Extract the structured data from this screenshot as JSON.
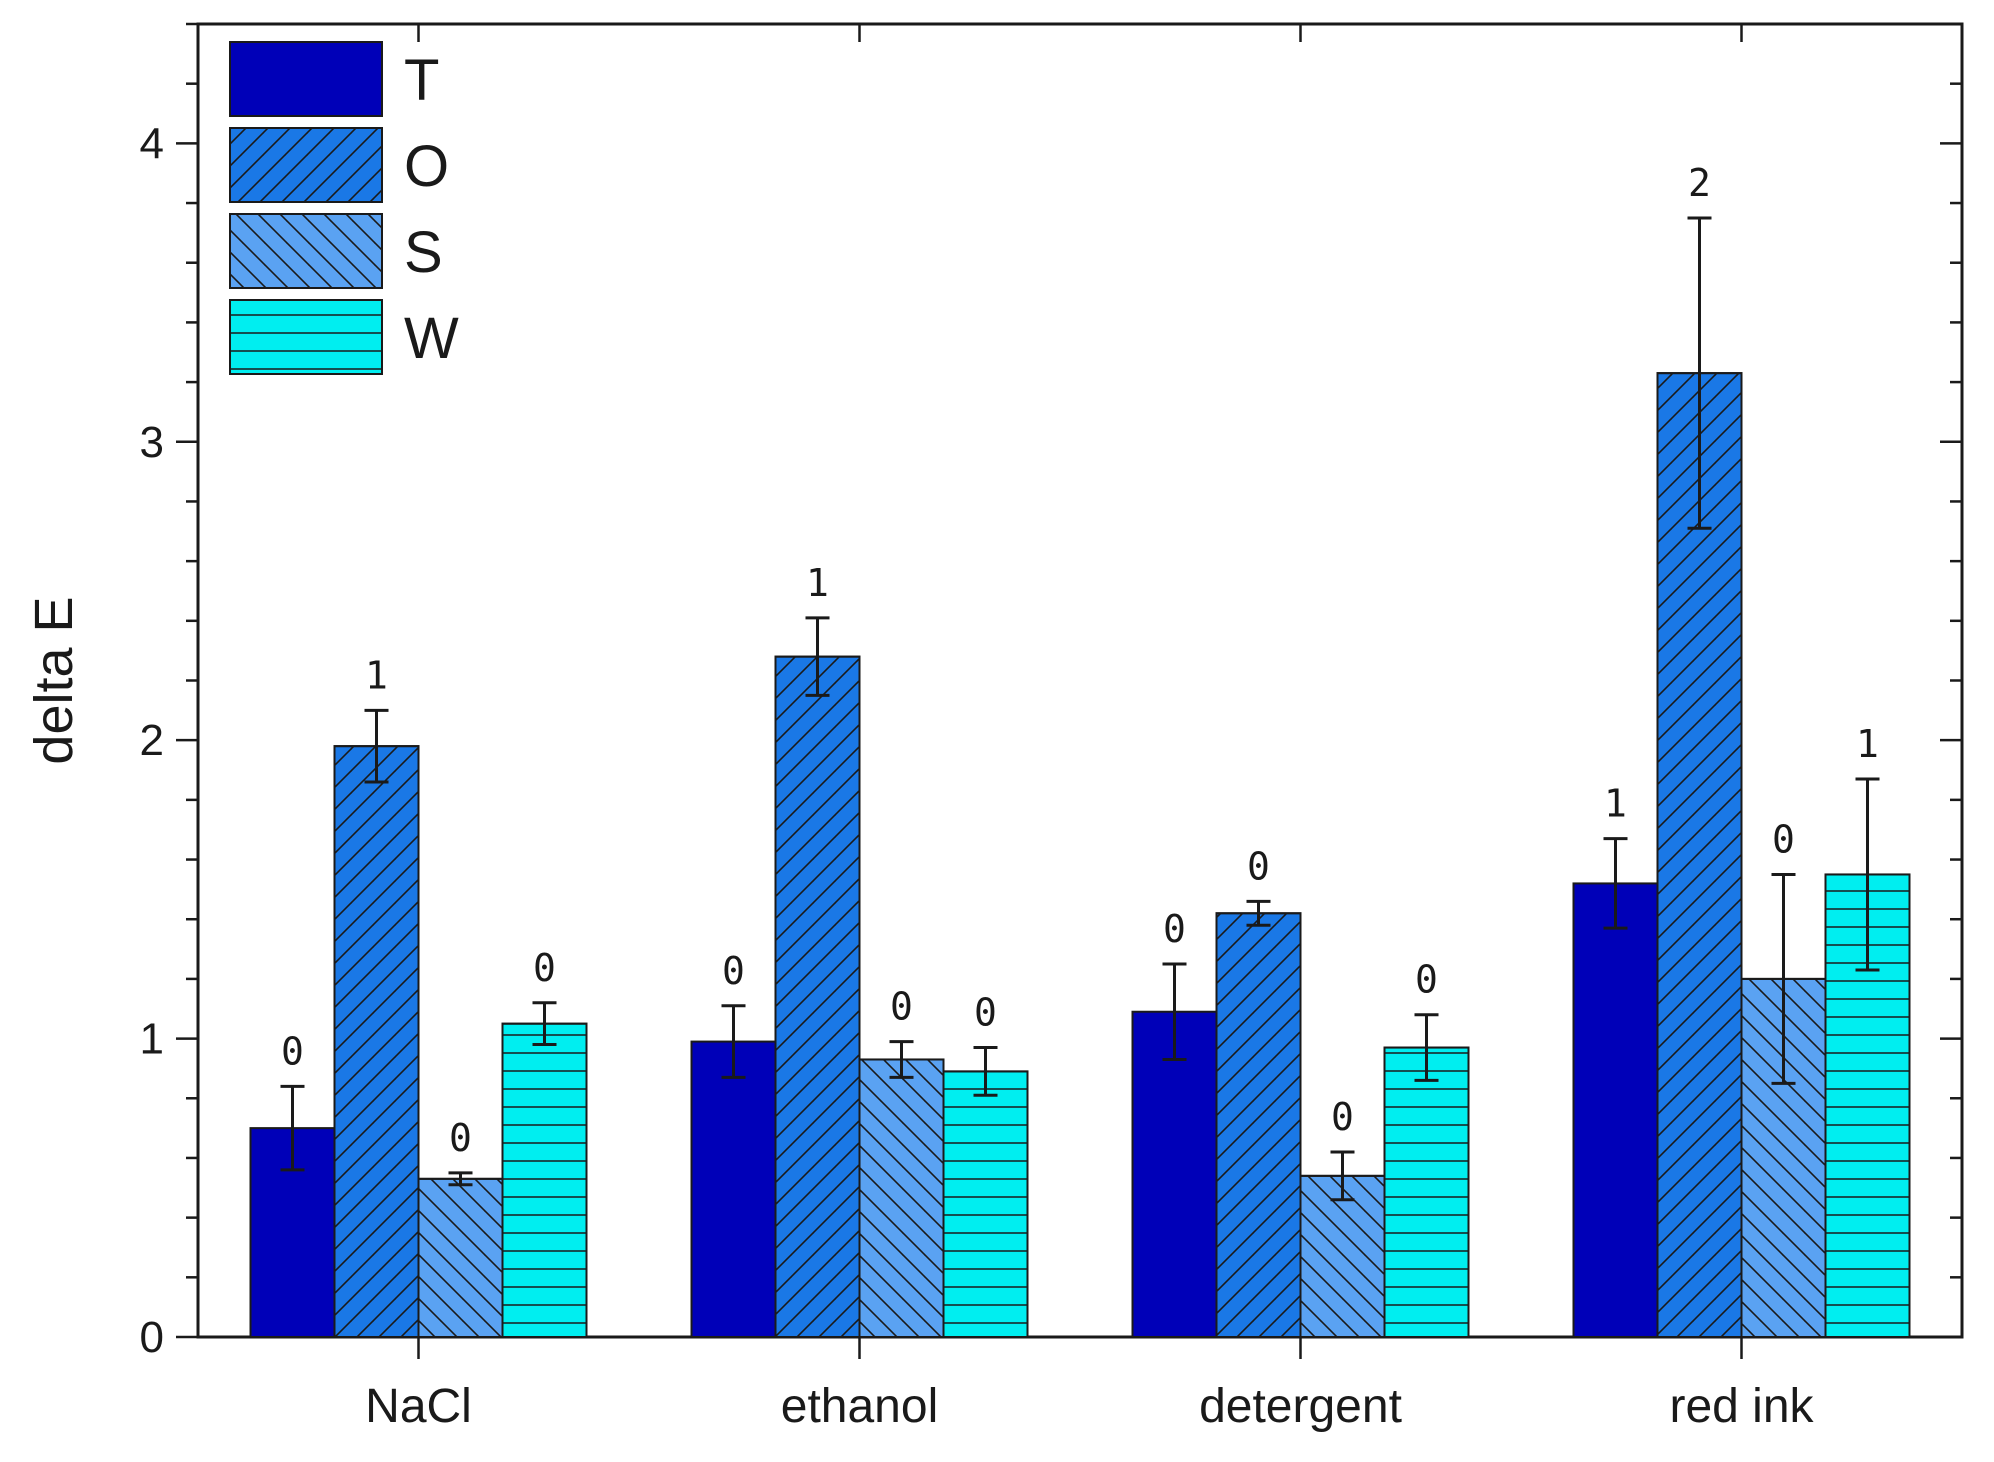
{
  "chart_data": {
    "type": "bar",
    "title": "",
    "xlabel": "",
    "ylabel": "delta E",
    "ylim": [
      0,
      4.4
    ],
    "yticks": [
      0,
      1,
      2,
      3,
      4
    ],
    "grid": false,
    "legend_position": "top-left",
    "categories": [
      "NaCl",
      "ethanol",
      "detergent",
      "red ink"
    ],
    "series": [
      {
        "name": "T",
        "color": "#0000b8",
        "pattern": "solid",
        "values": [
          0.7,
          0.99,
          1.09,
          1.52
        ],
        "errors": [
          0.14,
          0.12,
          0.16,
          0.15
        ],
        "labels": [
          "0",
          "0",
          "0",
          "1"
        ]
      },
      {
        "name": "O",
        "color": "#1a78e6",
        "pattern": "diag-up",
        "values": [
          1.98,
          2.28,
          1.42,
          3.23
        ],
        "errors": [
          0.12,
          0.13,
          0.04,
          0.52
        ],
        "labels": [
          "1",
          "1",
          "0",
          "2"
        ]
      },
      {
        "name": "S",
        "color": "#5aa2f2",
        "pattern": "diag-down",
        "values": [
          0.53,
          0.93,
          0.54,
          1.2
        ],
        "errors": [
          0.02,
          0.06,
          0.08,
          0.35
        ],
        "labels": [
          "0",
          "0",
          "0",
          "0"
        ]
      },
      {
        "name": "W",
        "color": "#00eef0",
        "pattern": "horizontal",
        "values": [
          1.05,
          0.89,
          0.97,
          1.55
        ],
        "errors": [
          0.07,
          0.08,
          0.11,
          0.32
        ],
        "labels": [
          "0",
          "0",
          "0",
          "1"
        ]
      }
    ]
  }
}
